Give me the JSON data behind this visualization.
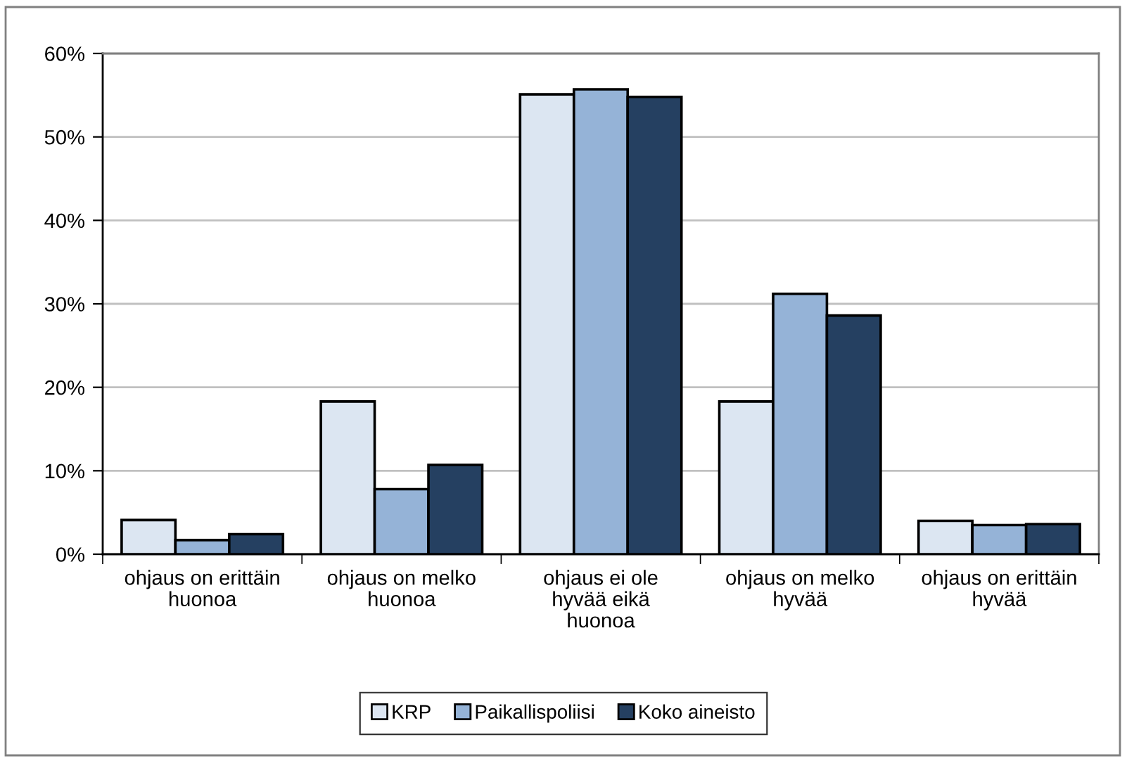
{
  "chart_data": {
    "type": "bar",
    "categories": [
      "ohjaus on erittäin\nhuonoa",
      "ohjaus on melko\nhuonoa",
      "ohjaus ei ole\nhyvää eikä\nhuonoa",
      "ohjaus on melko\nhyvää",
      "ohjaus on erittäin\nhyvää"
    ],
    "series": [
      {
        "name": "KRP",
        "color": "#dce6f2",
        "values": [
          4.1,
          18.3,
          55.1,
          18.3,
          4.0
        ]
      },
      {
        "name": "Paikallispoliisi",
        "color": "#95b3d7",
        "values": [
          1.7,
          7.8,
          55.7,
          31.2,
          3.5
        ]
      },
      {
        "name": "Koko aineisto",
        "color": "#254061",
        "values": [
          2.4,
          10.7,
          54.8,
          28.6,
          3.6
        ]
      }
    ],
    "ylim": [
      0,
      60
    ],
    "yticks": [
      {
        "value": 0,
        "label": "0%"
      },
      {
        "value": 10,
        "label": "10%"
      },
      {
        "value": 20,
        "label": "20%"
      },
      {
        "value": 30,
        "label": "30%"
      },
      {
        "value": 40,
        "label": "40%"
      },
      {
        "value": 50,
        "label": "50%"
      },
      {
        "value": 60,
        "label": "60%"
      }
    ],
    "grid": "y",
    "legend": "bottom"
  }
}
